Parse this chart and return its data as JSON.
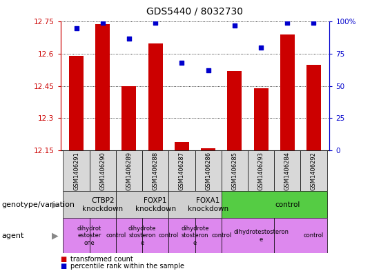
{
  "title": "GDS5440 / 8032730",
  "samples": [
    "GSM1406291",
    "GSM1406290",
    "GSM1406289",
    "GSM1406288",
    "GSM1406287",
    "GSM1406286",
    "GSM1406285",
    "GSM1406293",
    "GSM1406284",
    "GSM1406292"
  ],
  "transformed_counts": [
    12.59,
    12.74,
    12.45,
    12.65,
    12.19,
    12.16,
    12.52,
    12.44,
    12.69,
    12.55
  ],
  "percentile_ranks": [
    95,
    99,
    87,
    99,
    68,
    62,
    97,
    80,
    99,
    99
  ],
  "ylim": [
    12.15,
    12.75
  ],
  "yticks": [
    12.15,
    12.3,
    12.45,
    12.6,
    12.75
  ],
  "right_yticks": [
    0,
    25,
    50,
    75,
    100
  ],
  "right_ylim": [
    0,
    100
  ],
  "bar_color": "#cc0000",
  "dot_color": "#0000cc",
  "genotype_groups": [
    {
      "label": "CTBP2\nknockdown",
      "start": 0,
      "end": 2,
      "color": "#d0d0d0"
    },
    {
      "label": "FOXP1\nknockdown",
      "start": 2,
      "end": 4,
      "color": "#d0d0d0"
    },
    {
      "label": "FOXA1\nknockdown",
      "start": 4,
      "end": 6,
      "color": "#d0d0d0"
    },
    {
      "label": "control",
      "start": 6,
      "end": 10,
      "color": "#55cc44"
    }
  ],
  "agent_groups": [
    {
      "label": "dihydrot\nestoster\none",
      "start": 0,
      "end": 1,
      "color": "#dd88ee"
    },
    {
      "label": "control",
      "start": 1,
      "end": 2,
      "color": "#dd88ee"
    },
    {
      "label": "dihydrote\nstosteron\ne",
      "start": 2,
      "end": 3,
      "color": "#dd88ee"
    },
    {
      "label": "control",
      "start": 3,
      "end": 4,
      "color": "#dd88ee"
    },
    {
      "label": "dihydrote\nstosteron\ne",
      "start": 4,
      "end": 5,
      "color": "#dd88ee"
    },
    {
      "label": "control",
      "start": 5,
      "end": 6,
      "color": "#dd88ee"
    },
    {
      "label": "dihydrotestosteron\ne",
      "start": 6,
      "end": 8,
      "color": "#dd88ee"
    },
    {
      "label": "control",
      "start": 8,
      "end": 10,
      "color": "#dd88ee"
    }
  ],
  "legend_items": [
    {
      "label": "transformed count",
      "color": "#cc0000"
    },
    {
      "label": "percentile rank within the sample",
      "color": "#0000cc"
    }
  ],
  "left_label": "genotype/variation",
  "agent_label": "agent",
  "title_fontsize": 10,
  "tick_fontsize": 7.5,
  "sample_fontsize": 6,
  "label_fontsize": 8,
  "geno_fontsize": 7.5,
  "agent_fontsize": 6
}
